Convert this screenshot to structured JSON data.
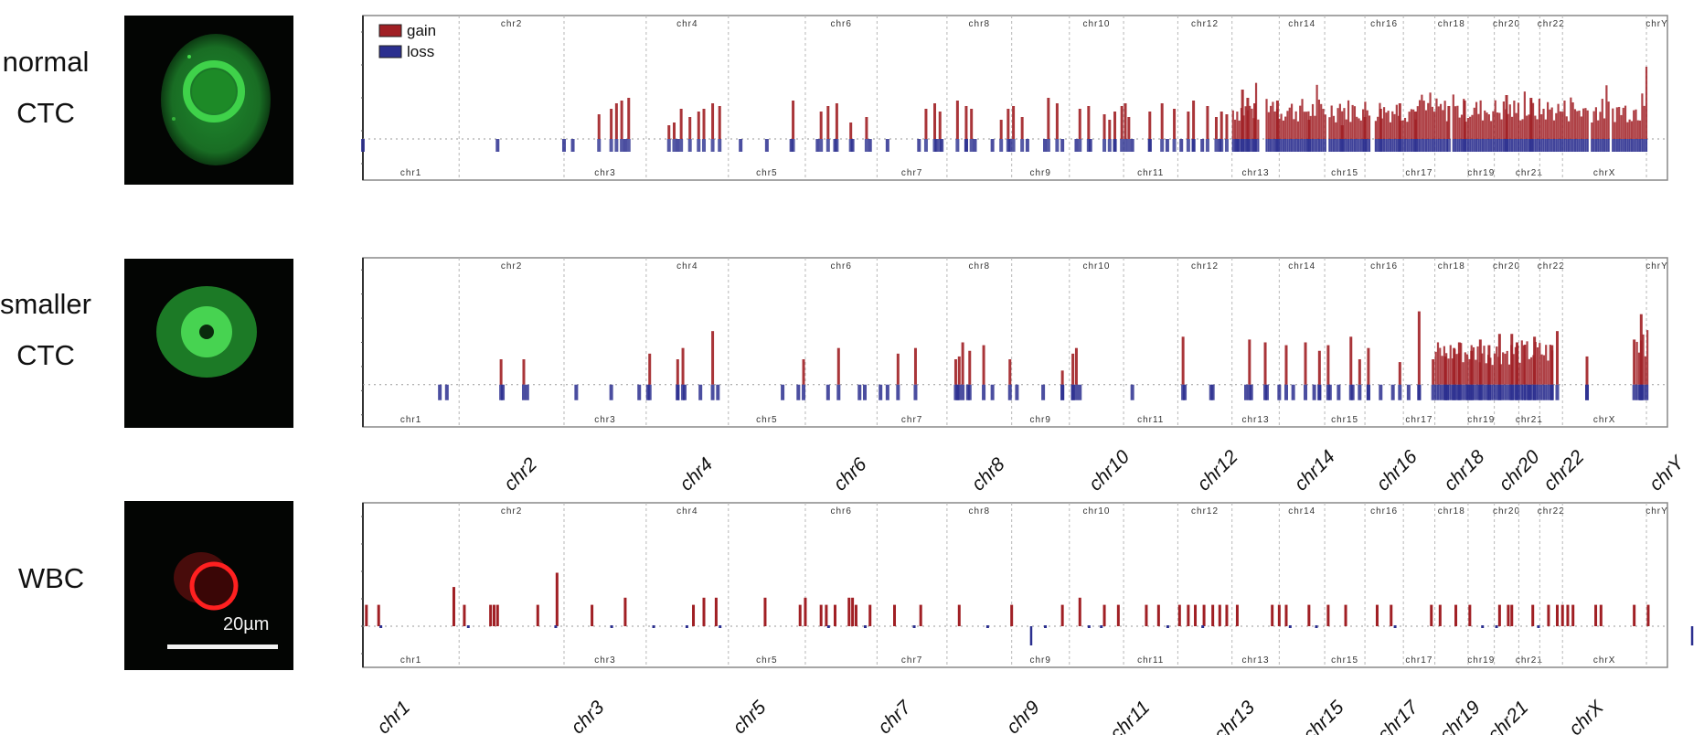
{
  "figure": {
    "rows": [
      {
        "id": "normal-ctc",
        "label_lines": [
          "normal",
          "CTC"
        ],
        "stain": "green"
      },
      {
        "id": "smaller-ctc",
        "label_lines": [
          "smaller",
          "CTC"
        ],
        "stain": "green"
      },
      {
        "id": "wbc",
        "label_lines": [
          "WBC"
        ],
        "stain": "red"
      }
    ],
    "scale_bar_label": "20µm",
    "colors": {
      "gain": "#a01f24",
      "loss": "#2b2f8f",
      "grid": "#b8b8b8",
      "frame": "#888888"
    }
  },
  "chart_data": [
    {
      "type": "bar",
      "title": "normal CTC copy number profile",
      "legend": [
        {
          "name": "gain",
          "color": "#a01f24"
        },
        {
          "name": "loss",
          "color": "#2b2f8f"
        }
      ],
      "legend_position": "top-left",
      "xlabel": "",
      "ylabel": "",
      "ylim": [
        -1.5,
        4.5
      ],
      "grid": "vertical dashed at chromosome boundaries",
      "chromosomes": [
        "chr1",
        "chr2",
        "chr3",
        "chr4",
        "chr5",
        "chr6",
        "chr7",
        "chr8",
        "chr9",
        "chr10",
        "chr11",
        "chr12",
        "chr13",
        "chr14",
        "chr15",
        "chr16",
        "chr17",
        "chr18",
        "chr19",
        "chr20",
        "chr21",
        "chr22",
        "chrX",
        "chrY"
      ],
      "chromosome_fractions": [
        0.0,
        0.055,
        0.115,
        0.162,
        0.209,
        0.253,
        0.294,
        0.334,
        0.371,
        0.404,
        0.435,
        0.466,
        0.497,
        0.524,
        0.55,
        0.573,
        0.595,
        0.613,
        0.632,
        0.647,
        0.661,
        0.673,
        0.686,
        0.734
      ],
      "top_labels": [
        "chr2",
        "chr4",
        "chr6",
        "chr8",
        "chr10",
        "chr12",
        "chr14",
        "chr16",
        "chr18",
        "chr20",
        "chr22",
        "chrY"
      ],
      "bottom_labels": [
        "chr1",
        "chr3",
        "chr5",
        "chr7",
        "chr9",
        "chr11",
        "chr13",
        "chr15",
        "chr17",
        "chr19",
        "chr21",
        "chrX"
      ],
      "series": [
        {
          "name": "gain",
          "x": [
            0.135,
            0.142,
            0.145,
            0.148,
            0.152,
            0.175,
            0.178,
            0.182,
            0.187,
            0.192,
            0.195,
            0.2,
            0.204,
            0.246,
            0.262,
            0.266,
            0.271,
            0.279,
            0.288,
            0.322,
            0.327,
            0.33,
            0.34,
            0.345,
            0.348,
            0.365,
            0.369,
            0.372,
            0.377,
            0.392,
            0.397,
            0.41,
            0.415,
            0.424,
            0.427,
            0.43,
            0.434,
            0.436,
            0.438,
            0.45,
            0.457,
            0.464,
            0.472,
            0.475,
            0.483,
            0.488,
            0.491,
            0.494,
            0.503,
            0.506,
            0.51,
            0.523,
            0.541,
            0.56,
            0.573,
            0.582,
            0.593,
            0.602,
            0.621,
            0.63,
            0.654,
            0.668
          ],
          "values": [
            0.9,
            1.1,
            1.3,
            1.4,
            1.5,
            0.5,
            0.6,
            1.1,
            0.8,
            1.0,
            1.1,
            1.3,
            1.2,
            1.4,
            1.0,
            1.2,
            1.3,
            0.6,
            0.8,
            1.1,
            1.3,
            1.0,
            1.4,
            1.2,
            1.1,
            0.7,
            1.1,
            1.2,
            0.8,
            1.5,
            1.3,
            1.1,
            1.2,
            0.9,
            0.7,
            1.0,
            1.2,
            1.3,
            0.8,
            1.0,
            1.3,
            1.1,
            1.0,
            1.4,
            1.2,
            0.8,
            1.0,
            0.9,
            1.8,
            1.5,
            1.3,
            1.4,
            0.7,
            0.5,
            0.8,
            1.1,
            1.3,
            1.0,
            1.2,
            1.4,
            1.6,
            1.5
          ]
        },
        {
          "name": "dense-gain-region",
          "x_range": [
            0.497,
            0.734
          ],
          "mean_value": 1.2,
          "max_value": 3.5
        }
      ]
    },
    {
      "type": "bar",
      "title": "smaller CTC copy number profile",
      "ylim": [
        -1.5,
        4.5
      ],
      "chromosomes": [
        "chr1",
        "chr2",
        "chr3",
        "chr4",
        "chr5",
        "chr6",
        "chr7",
        "chr8",
        "chr9",
        "chr10",
        "chr11",
        "chr12",
        "chr13",
        "chr14",
        "chr15",
        "chr16",
        "chr17",
        "chr18",
        "chr19",
        "chr20",
        "chr21",
        "chr22",
        "chrX",
        "chrY"
      ],
      "series": [
        {
          "name": "gain",
          "x": [
            0.079,
            0.092,
            0.164,
            0.18,
            0.183,
            0.2,
            0.252,
            0.272,
            0.306,
            0.316,
            0.339,
            0.341,
            0.343,
            0.347,
            0.355,
            0.37,
            0.4,
            0.406,
            0.408,
            0.469,
            0.507,
            0.516,
            0.528,
            0.539,
            0.547,
            0.552,
            0.565,
            0.575,
            0.57,
            0.593,
            0.604,
            0.612,
            0.619,
            0.624,
            0.627,
            0.634,
            0.639,
            0.644,
            0.65,
            0.657,
            0.66,
            0.664,
            0.67,
            0.68,
            0.683,
            0.7,
            0.727,
            0.731
          ],
          "values": [
            0.9,
            0.9,
            1.1,
            0.9,
            1.3,
            1.9,
            0.9,
            1.3,
            1.1,
            1.3,
            0.9,
            1.0,
            1.5,
            1.2,
            1.4,
            0.9,
            0.5,
            1.1,
            1.3,
            1.7,
            1.6,
            1.5,
            1.4,
            1.5,
            1.2,
            1.4,
            1.7,
            1.3,
            0.9,
            0.8,
            2.6,
            0.9,
            1.0,
            1.3,
            1.5,
            1.2,
            1.6,
            1.4,
            1.8,
            1.8,
            1.5,
            1.4,
            1.7,
            1.4,
            1.9,
            1.0,
            1.6,
            2.5
          ]
        }
      ],
      "loss_positions": [
        0.044,
        0.048,
        0.08,
        0.094,
        0.122,
        0.142,
        0.158,
        0.163,
        0.18,
        0.184,
        0.193,
        0.203,
        0.24,
        0.249,
        0.266,
        0.284,
        0.287,
        0.296,
        0.3,
        0.34,
        0.346,
        0.36,
        0.374,
        0.389,
        0.4,
        0.406,
        0.41,
        0.44,
        0.47,
        0.485,
        0.486,
        0.505,
        0.508,
        0.517,
        0.524,
        0.532,
        0.544,
        0.547,
        0.553,
        0.558,
        0.566,
        0.575,
        0.582,
        0.589,
        0.598,
        0.604,
        0.62,
        0.632,
        0.667,
        0.7,
        0.731
      ]
    },
    {
      "type": "bar",
      "title": "WBC copy number profile",
      "ylim": [
        -1.5,
        4.5
      ],
      "chromosomes": [
        "chr1",
        "chr2",
        "chr3",
        "chr4",
        "chr5",
        "chr6",
        "chr7",
        "chr8",
        "chr9",
        "chr10",
        "chr11",
        "chr12",
        "chr13",
        "chr14",
        "chr15",
        "chr16",
        "chr17",
        "chr18",
        "chr19",
        "chr20",
        "chr21",
        "chr22",
        "chrX",
        "chrY"
      ],
      "outer_axis_labels": {
        "top": [
          "chr2",
          "chr4",
          "chr6",
          "chr8",
          "chr10",
          "chr12",
          "chr14",
          "chr16",
          "chr18",
          "chr20",
          "chr22",
          "chrY"
        ],
        "bottom": [
          "chr1",
          "chr3",
          "chr5",
          "chr7",
          "chr9",
          "chr11",
          "chr13",
          "chr15",
          "chr17",
          "chr19",
          "chr21",
          "chrX"
        ]
      },
      "series": [
        {
          "name": "gain",
          "x": [
            0.002,
            0.009,
            0.052,
            0.058,
            0.073,
            0.075,
            0.077,
            0.1,
            0.111,
            0.131,
            0.15,
            0.189,
            0.195,
            0.202,
            0.23,
            0.25,
            0.253,
            0.262,
            0.265,
            0.27,
            0.278,
            0.28,
            0.282,
            0.29,
            0.304,
            0.319,
            0.341,
            0.371,
            0.4,
            0.41,
            0.424,
            0.432,
            0.448,
            0.455,
            0.467,
            0.472,
            0.476,
            0.481,
            0.486,
            0.49,
            0.494,
            0.5,
            0.52,
            0.524,
            0.528,
            0.541,
            0.552,
            0.562,
            0.58,
            0.588,
            0.611,
            0.616,
            0.625,
            0.633,
            0.65,
            0.655,
            0.657,
            0.669,
            0.678,
            0.683,
            0.686,
            0.689,
            0.692,
            0.705,
            0.708,
            0.727,
            0.735
          ],
          "values": [
            0.6,
            0.6,
            1.1,
            0.6,
            0.6,
            0.6,
            0.6,
            0.6,
            1.5,
            0.6,
            0.8,
            0.6,
            0.8,
            0.8,
            0.8,
            0.6,
            0.8,
            0.6,
            0.6,
            0.6,
            0.8,
            0.8,
            0.6,
            0.6,
            0.6,
            0.6,
            0.6,
            0.6,
            0.6,
            0.8,
            0.6,
            0.6,
            0.6,
            0.6,
            0.6,
            0.6,
            0.6,
            0.6,
            0.6,
            0.6,
            0.6,
            0.6,
            0.6,
            0.6,
            0.6,
            0.6,
            0.6,
            0.6,
            0.6,
            0.6,
            0.6,
            0.6,
            0.6,
            0.6,
            0.6,
            0.6,
            0.6,
            0.6,
            0.6,
            0.6,
            0.6,
            0.6,
            0.6,
            0.6,
            0.6,
            0.6,
            0.6
          ]
        },
        {
          "name": "loss",
          "x": [
            0.382,
            0.76,
            0.816,
            0.819
          ],
          "values": [
            -0.7,
            -0.7,
            -0.7,
            -0.7
          ]
        }
      ]
    }
  ]
}
